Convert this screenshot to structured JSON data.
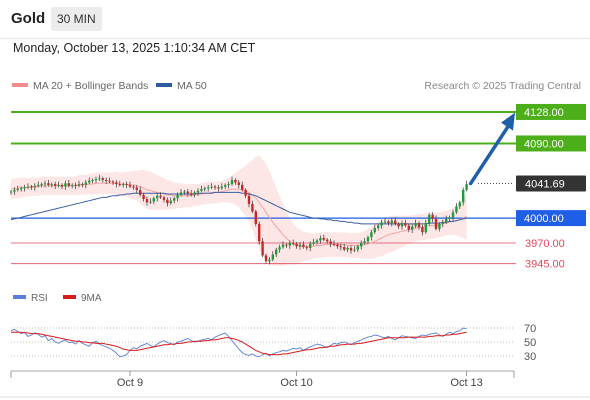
{
  "header": {
    "title": "Gold",
    "timeframe": "30 MIN"
  },
  "datetime": "Monday, October 13, 2025 1:10:34 AM CET",
  "legend": {
    "bollinger": {
      "label": "MA 20 + Bollinger Bands",
      "color": "#f28b8b"
    },
    "ma50": {
      "label": "MA 50",
      "color": "#2f5d9c"
    }
  },
  "copyright": "Research © 2025 Trading Central",
  "colors": {
    "target": "#4caf1a",
    "current": "#333333",
    "pivot": "#1f5ee6",
    "support": "#e0485a",
    "bull": "#1b9e3a",
    "bear": "#c62828",
    "arrow": "#1f5fa8",
    "rsi": "#5b7fd6",
    "rsi_ma": "#d81b1b",
    "band_fill": "#fde3e3"
  },
  "chart_data": [
    {
      "type": "candlestick",
      "title": "Gold",
      "timeframe": "30 MIN",
      "x_tick_labels": [
        "Oct 9",
        "Oct 10",
        "Oct 13"
      ],
      "ylim": [
        3935,
        4140
      ],
      "current_price": 4041.69,
      "levels": [
        {
          "label": "4128.00",
          "value": 4128.0,
          "kind": "target"
        },
        {
          "label": "4090.00",
          "value": 4090.0,
          "kind": "target"
        },
        {
          "label": "4041.69",
          "value": 4041.69,
          "kind": "current"
        },
        {
          "label": "4000.00",
          "value": 4000.0,
          "kind": "pivot"
        },
        {
          "label": "3970.00",
          "value": 3970.0,
          "kind": "support"
        },
        {
          "label": "3945.00",
          "value": 3945.0,
          "kind": "support"
        }
      ],
      "forecast_arrow": {
        "from": 4041.69,
        "to": 4120
      },
      "close": [
        4032,
        4034,
        4035,
        4036,
        4037,
        4038,
        4037,
        4039,
        4040,
        4041,
        4042,
        4040,
        4041,
        4039,
        4040,
        4038,
        4042,
        4039,
        4040,
        4039,
        4041,
        4040,
        4043,
        4045,
        4046,
        4047,
        4048,
        4046,
        4045,
        4044,
        4043,
        4041,
        4040,
        4041,
        4040,
        4038,
        4037,
        4034,
        4028,
        4023,
        4019,
        4020,
        4024,
        4027,
        4025,
        4022,
        4018,
        4021,
        4024,
        4028,
        4031,
        4032,
        4030,
        4028,
        4031,
        4033,
        4035,
        4036,
        4037,
        4038,
        4037,
        4036,
        4038,
        4040,
        4041,
        4046,
        4043,
        4040,
        4034,
        4027,
        4017,
        4008,
        3993,
        3972,
        3955,
        3948,
        3950,
        3956,
        3962,
        3965,
        3968,
        3967,
        3970,
        3969,
        3966,
        3968,
        3965,
        3964,
        3969,
        3971,
        3973,
        3976,
        3974,
        3972,
        3969,
        3968,
        3966,
        3965,
        3962,
        3964,
        3961,
        3962,
        3966,
        3970,
        3972,
        3977,
        3983,
        3988,
        3991,
        3995,
        3996,
        3994,
        3997,
        3993,
        3990,
        3994,
        3991,
        3986,
        3990,
        3994,
        3989,
        3983,
        3994,
        4004,
        3999,
        3987,
        3993,
        3995,
        3999,
        4001,
        4007,
        4014,
        4019,
        4034,
        4041
      ],
      "ma20": [
        4035,
        4036,
        4036,
        4037,
        4037,
        4037,
        4038,
        4038,
        4038,
        4039,
        4039,
        4039,
        4039,
        4039,
        4039,
        4039,
        4039,
        4039,
        4039,
        4039,
        4040,
        4040,
        4040,
        4041,
        4041,
        4042,
        4042,
        4042,
        4042,
        4042,
        4042,
        4042,
        4041,
        4041,
        4041,
        4040,
        4040,
        4039,
        4038,
        4036,
        4034,
        4033,
        4032,
        4031,
        4030,
        4029,
        4028,
        4028,
        4027,
        4027,
        4027,
        4027,
        4027,
        4027,
        4028,
        4028,
        4029,
        4030,
        4030,
        4031,
        4031,
        4031,
        4032,
        4033,
        4034,
        4035,
        4035,
        4035,
        4034,
        4033,
        4031,
        4028,
        4024,
        4019,
        4013,
        4007,
        4001,
        3995,
        3990,
        3985,
        3980,
        3976,
        3972,
        3969,
        3967,
        3966,
        3966,
        3966,
        3966,
        3966,
        3967,
        3967,
        3968,
        3968,
        3968,
        3968,
        3968,
        3968,
        3968,
        3967,
        3967,
        3967,
        3967,
        3967,
        3968,
        3969,
        3970,
        3972,
        3974,
        3976,
        3978,
        3980,
        3981,
        3982,
        3983,
        3984,
        3985,
        3986,
        3987,
        3988,
        3989,
        3989,
        3990,
        3991,
        3991,
        3991,
        3992,
        3993,
        3994,
        3995,
        3996,
        3997,
        3998,
        4000,
        4002
      ],
      "ma50": [
        3998,
        3999,
        4000,
        4001,
        4002,
        4003,
        4004,
        4005,
        4006,
        4007,
        4008,
        4009,
        4010,
        4011,
        4012,
        4013,
        4014,
        4015,
        4016,
        4017,
        4018,
        4019,
        4020,
        4021,
        4022,
        4023,
        4024,
        4025,
        4025,
        4026,
        4027,
        4027,
        4028,
        4028,
        4029,
        4029,
        4030,
        4030,
        4030,
        4030,
        4030,
        4030,
        4030,
        4030,
        4030,
        4030,
        4029,
        4029,
        4029,
        4029,
        4029,
        4029,
        4029,
        4029,
        4029,
        4030,
        4030,
        4030,
        4030,
        4030,
        4031,
        4031,
        4031,
        4031,
        4031,
        4031,
        4031,
        4031,
        4030,
        4030,
        4029,
        4028,
        4027,
        4025,
        4023,
        4021,
        4019,
        4017,
        4015,
        4013,
        4011,
        4009,
        4007,
        4006,
        4005,
        4004,
        4003,
        4002,
        4001,
        4000,
        4000,
        3999,
        3999,
        3998,
        3998,
        3997,
        3997,
        3996,
        3996,
        3995,
        3995,
        3994,
        3994,
        3993,
        3993,
        3993,
        3993,
        3993,
        3993,
        3993,
        3993,
        3993,
        3993,
        3993,
        3993,
        3993,
        3993,
        3993,
        3993,
        3993,
        3993,
        3993,
        3993,
        3994,
        3994,
        3994,
        3994,
        3995,
        3995,
        3996,
        3996,
        3997,
        3998,
        3999,
        4000
      ],
      "band_width": [
        12,
        12,
        12,
        12,
        12,
        11,
        11,
        11,
        11,
        11,
        11,
        11,
        11,
        11,
        11,
        11,
        11,
        11,
        11,
        11,
        12,
        12,
        12,
        12,
        13,
        13,
        13,
        13,
        13,
        13,
        13,
        14,
        14,
        14,
        15,
        16,
        17,
        18,
        20,
        22,
        23,
        23,
        22,
        21,
        20,
        19,
        18,
        17,
        16,
        15,
        15,
        14,
        14,
        14,
        13,
        13,
        13,
        13,
        13,
        13,
        13,
        13,
        13,
        14,
        15,
        17,
        19,
        22,
        26,
        30,
        36,
        42,
        50,
        56,
        58,
        58,
        56,
        52,
        47,
        42,
        37,
        32,
        28,
        25,
        22,
        20,
        18,
        17,
        16,
        15,
        15,
        15,
        15,
        15,
        15,
        15,
        15,
        15,
        15,
        15,
        15,
        15,
        15,
        16,
        17,
        18,
        19,
        20,
        21,
        22,
        22,
        22,
        22,
        21,
        20,
        19,
        18,
        17,
        17,
        16,
        16,
        16,
        16,
        16,
        16,
        15,
        15,
        15,
        15,
        15,
        16,
        18,
        20,
        24,
        28
      ]
    },
    {
      "type": "line",
      "title": "RSI",
      "series": [
        {
          "name": "RSI",
          "values": [
            66,
            68,
            65,
            62,
            64,
            58,
            60,
            63,
            61,
            57,
            59,
            52,
            55,
            50,
            48,
            51,
            53,
            49,
            50,
            47,
            52,
            48,
            46,
            44,
            49,
            51,
            47,
            45,
            43,
            41,
            38,
            34,
            29,
            30,
            32,
            38,
            42,
            40,
            44,
            46,
            48,
            45,
            43,
            47,
            50,
            52,
            49,
            48,
            46,
            50,
            51,
            53,
            55,
            52,
            50,
            51,
            53,
            54,
            55,
            53,
            57,
            59,
            61,
            63,
            58,
            52,
            46,
            40,
            35,
            32,
            31,
            33,
            30,
            29,
            32,
            34,
            30,
            33,
            35,
            36,
            38,
            37,
            39,
            41,
            40,
            42,
            38,
            41,
            43,
            45,
            47,
            46,
            44,
            42,
            45,
            48,
            47,
            49,
            50,
            48,
            46,
            49,
            51,
            53,
            55,
            57,
            58,
            60,
            59,
            57,
            56,
            58,
            55,
            53,
            56,
            59,
            58,
            57,
            56,
            55,
            58,
            60,
            59,
            61,
            62,
            63,
            60,
            58,
            61,
            64,
            62,
            65,
            66,
            70,
            69
          ]
        },
        {
          "name": "9MA",
          "values": [
            64,
            64,
            64,
            64,
            63,
            63,
            62,
            62,
            62,
            61,
            60,
            59,
            58,
            57,
            56,
            55,
            54,
            53,
            52,
            51,
            51,
            50,
            50,
            49,
            49,
            48,
            48,
            48,
            47,
            46,
            45,
            44,
            42,
            40,
            39,
            38,
            38,
            38,
            39,
            40,
            41,
            42,
            43,
            44,
            45,
            46,
            46,
            47,
            47,
            48,
            48,
            49,
            50,
            50,
            51,
            51,
            51,
            52,
            52,
            53,
            53,
            54,
            55,
            56,
            56,
            55,
            54,
            52,
            50,
            47,
            44,
            41,
            38,
            36,
            34,
            33,
            32,
            32,
            32,
            32,
            33,
            33,
            34,
            35,
            36,
            37,
            38,
            39,
            39,
            40,
            41,
            42,
            42,
            43,
            44,
            44,
            45,
            46,
            46,
            47,
            47,
            47,
            48,
            48,
            49,
            50,
            51,
            52,
            53,
            54,
            55,
            56,
            56,
            56,
            56,
            56,
            56,
            57,
            57,
            57,
            57,
            57,
            57,
            58,
            58,
            59,
            59,
            59,
            60,
            60,
            61,
            61,
            62,
            63,
            64
          ]
        }
      ],
      "ytick_labels": [
        "70",
        "50",
        "30"
      ],
      "ylim": [
        10,
        90
      ]
    }
  ]
}
